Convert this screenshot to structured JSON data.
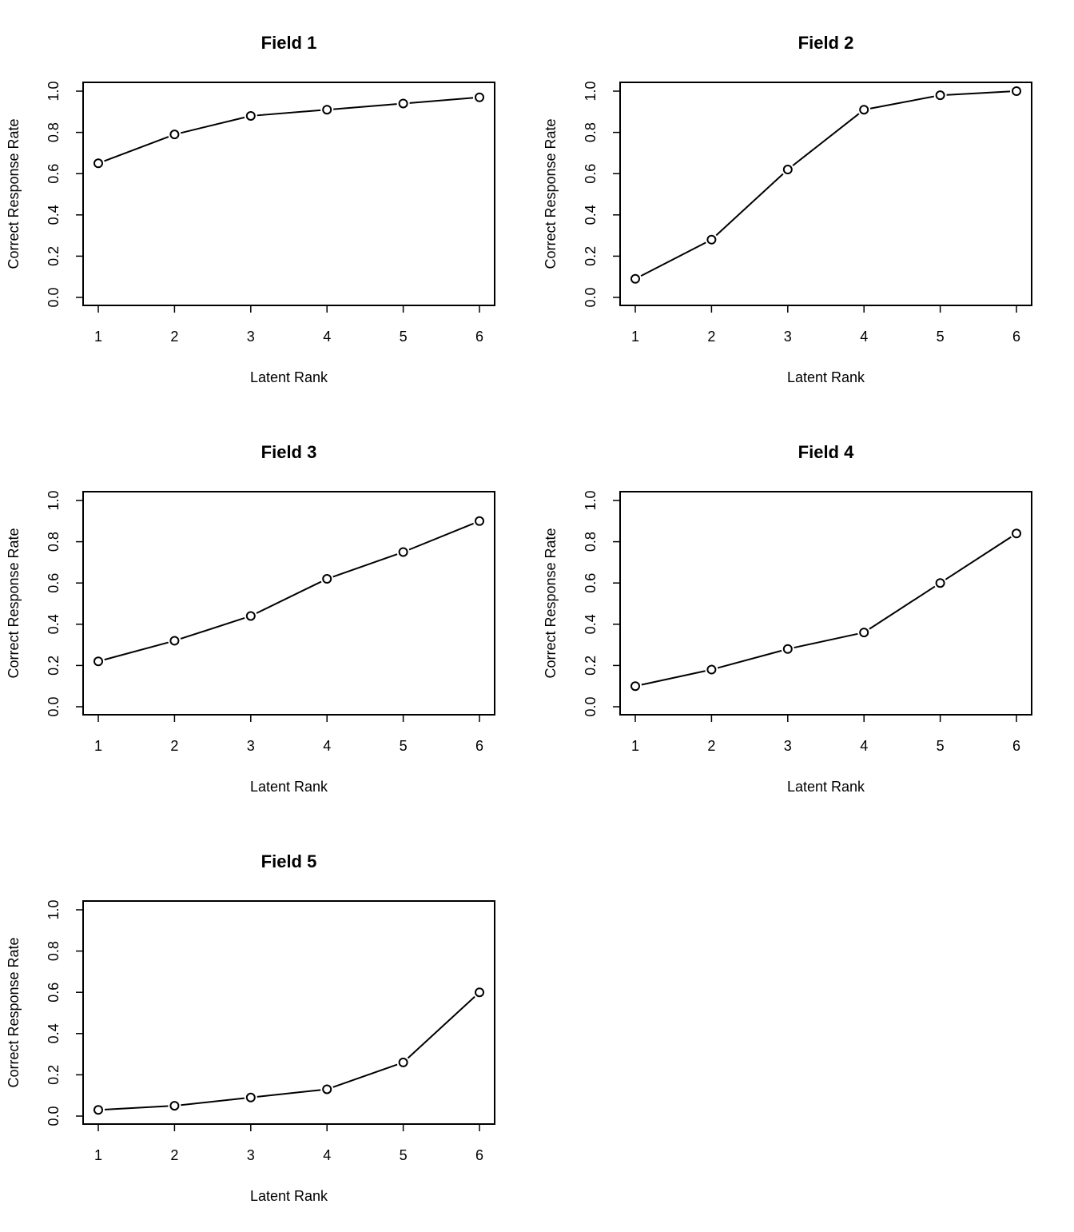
{
  "chart_data": [
    {
      "type": "line",
      "title": "Field 1",
      "xlabel": "Latent Rank",
      "ylabel": "Correct Response Rate",
      "x": [
        1,
        2,
        3,
        4,
        5,
        6
      ],
      "values": [
        0.65,
        0.79,
        0.88,
        0.91,
        0.94,
        0.97
      ],
      "xticks": [
        "1",
        "2",
        "3",
        "4",
        "5",
        "6"
      ],
      "yticks": [
        "0.0",
        "0.2",
        "0.4",
        "0.6",
        "0.8",
        "1.0"
      ],
      "xlim": [
        1,
        6
      ],
      "ylim": [
        0,
        1
      ],
      "grid": false
    },
    {
      "type": "line",
      "title": "Field 2",
      "xlabel": "Latent Rank",
      "ylabel": "Correct Response Rate",
      "x": [
        1,
        2,
        3,
        4,
        5,
        6
      ],
      "values": [
        0.09,
        0.28,
        0.62,
        0.91,
        0.98,
        1.0
      ],
      "xticks": [
        "1",
        "2",
        "3",
        "4",
        "5",
        "6"
      ],
      "yticks": [
        "0.0",
        "0.2",
        "0.4",
        "0.6",
        "0.8",
        "1.0"
      ],
      "xlim": [
        1,
        6
      ],
      "ylim": [
        0,
        1
      ],
      "grid": false
    },
    {
      "type": "line",
      "title": "Field 3",
      "xlabel": "Latent Rank",
      "ylabel": "Correct Response Rate",
      "x": [
        1,
        2,
        3,
        4,
        5,
        6
      ],
      "values": [
        0.22,
        0.32,
        0.44,
        0.62,
        0.75,
        0.9
      ],
      "xticks": [
        "1",
        "2",
        "3",
        "4",
        "5",
        "6"
      ],
      "yticks": [
        "0.0",
        "0.2",
        "0.4",
        "0.6",
        "0.8",
        "1.0"
      ],
      "xlim": [
        1,
        6
      ],
      "ylim": [
        0,
        1
      ],
      "grid": false
    },
    {
      "type": "line",
      "title": "Field 4",
      "xlabel": "Latent Rank",
      "ylabel": "Correct Response Rate",
      "x": [
        1,
        2,
        3,
        4,
        5,
        6
      ],
      "values": [
        0.1,
        0.18,
        0.28,
        0.36,
        0.6,
        0.84
      ],
      "xticks": [
        "1",
        "2",
        "3",
        "4",
        "5",
        "6"
      ],
      "yticks": [
        "0.0",
        "0.2",
        "0.4",
        "0.6",
        "0.8",
        "1.0"
      ],
      "xlim": [
        1,
        6
      ],
      "ylim": [
        0,
        1
      ],
      "grid": false
    },
    {
      "type": "line",
      "title": "Field 5",
      "xlabel": "Latent Rank",
      "ylabel": "Correct Response Rate",
      "x": [
        1,
        2,
        3,
        4,
        5,
        6
      ],
      "values": [
        0.03,
        0.05,
        0.09,
        0.13,
        0.26,
        0.6
      ],
      "xticks": [
        "1",
        "2",
        "3",
        "4",
        "5",
        "6"
      ],
      "yticks": [
        "0.0",
        "0.2",
        "0.4",
        "0.6",
        "0.8",
        "1.0"
      ],
      "xlim": [
        1,
        6
      ],
      "ylim": [
        0,
        1
      ],
      "grid": false
    }
  ]
}
